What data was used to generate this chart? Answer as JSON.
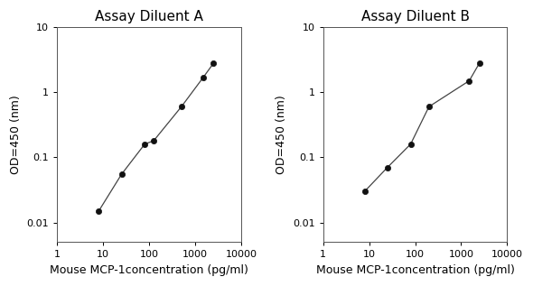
{
  "title_a": "Assay Diluent A",
  "title_b": "Assay Diluent B",
  "xlabel": "Mouse MCP-1concentration (pg/ml)",
  "ylabel": "OD=450 (nm)",
  "xlim": [
    1,
    10000
  ],
  "ylim": [
    0.005,
    10
  ],
  "x_a": [
    8,
    25,
    80,
    125,
    500,
    1500,
    2500
  ],
  "y_a": [
    0.015,
    0.055,
    0.16,
    0.18,
    0.6,
    1.7,
    2.8
  ],
  "x_b": [
    8,
    25,
    80,
    200,
    1500,
    2500
  ],
  "y_b": [
    0.03,
    0.07,
    0.16,
    0.6,
    1.5,
    2.8
  ],
  "line_color": "#444444",
  "marker_color": "#111111",
  "bg_color": "#ffffff",
  "title_fontsize": 11,
  "label_fontsize": 9,
  "tick_fontsize": 8,
  "yticks": [
    0.01,
    0.1,
    1,
    10
  ],
  "ytick_labels": [
    "0.01",
    "0.1",
    "1",
    "10"
  ],
  "xticks": [
    1,
    10,
    100,
    1000,
    10000
  ],
  "xtick_labels": [
    "1",
    "10",
    "100",
    "1000",
    "10000"
  ]
}
